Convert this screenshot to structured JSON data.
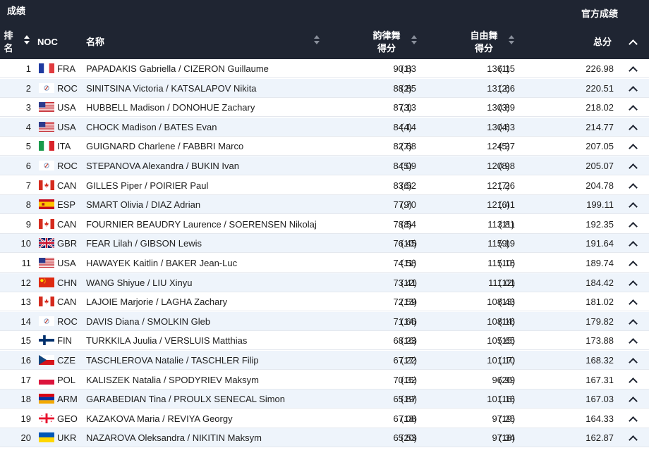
{
  "header": {
    "title": "成绩",
    "official": "官方成绩",
    "rank_label_line1": "排",
    "rank_label_line2": "名",
    "noc": "NOC",
    "name": "名称",
    "rhythm_line1": "韵律舞",
    "rhythm_line2": "得分",
    "free_line1": "自由舞",
    "free_line2": "得分",
    "total": "总分"
  },
  "rows": [
    {
      "rank": "1",
      "noc": "FRA",
      "flag": "fra",
      "name": "PAPADAKIS Gabriella / CIZERON Guillaume",
      "rd": "90.83",
      "rd_place": "(1)",
      "fd": "136.15",
      "fd_place": "(1)",
      "total": "226.98"
    },
    {
      "rank": "2",
      "noc": "ROC",
      "flag": "roc",
      "name": "SINITSINA Victoria / KATSALAPOV Nikita",
      "rd": "88.85",
      "rd_place": "(2)",
      "fd": "131.66",
      "fd_place": "(2)",
      "total": "220.51"
    },
    {
      "rank": "3",
      "noc": "USA",
      "flag": "usa",
      "name": "HUBBELL Madison / DONOHUE Zachary",
      "rd": "87.13",
      "rd_place": "(3)",
      "fd": "130.89",
      "fd_place": "(3)",
      "total": "218.02"
    },
    {
      "rank": "4",
      "noc": "USA",
      "flag": "usa",
      "name": "CHOCK Madison / BATES Evan",
      "rd": "84.14",
      "rd_place": "(4)",
      "fd": "130.63",
      "fd_place": "(4)",
      "total": "214.77"
    },
    {
      "rank": "5",
      "noc": "ITA",
      "flag": "ita",
      "name": "GUIGNARD Charlene / FABBRI Marco",
      "rd": "82.68",
      "rd_place": "(7)",
      "fd": "124.37",
      "fd_place": "(5)",
      "total": "207.05"
    },
    {
      "rank": "6",
      "noc": "ROC",
      "flag": "roc",
      "name": "STEPANOVA Alexandra / BUKIN Ivan",
      "rd": "84.09",
      "rd_place": "(5)",
      "fd": "120.98",
      "fd_place": "(8)",
      "total": "205.07"
    },
    {
      "rank": "7",
      "noc": "CAN",
      "flag": "can",
      "name": "GILLES Piper / POIRIER Paul",
      "rd": "83.52",
      "rd_place": "(6)",
      "fd": "121.26",
      "fd_place": "(7)",
      "total": "204.78"
    },
    {
      "rank": "8",
      "noc": "ESP",
      "flag": "esp",
      "name": "SMART Olivia / DIAZ Adrian",
      "rd": "77.70",
      "rd_place": "(9)",
      "fd": "121.41",
      "fd_place": "(6)",
      "total": "199.11"
    },
    {
      "rank": "9",
      "noc": "CAN",
      "flag": "can",
      "name": "FOURNIER BEAUDRY Laurence / SOERENSEN Nikolaj",
      "rd": "78.54",
      "rd_place": "(8)",
      "fd": "113.81",
      "fd_place": "(11)",
      "total": "192.35"
    },
    {
      "rank": "10",
      "noc": "GBR",
      "flag": "gbr",
      "name": "FEAR Lilah / GIBSON Lewis",
      "rd": "76.45",
      "rd_place": "(10)",
      "fd": "115.19",
      "fd_place": "(9)",
      "total": "191.64"
    },
    {
      "rank": "11",
      "noc": "USA",
      "flag": "usa",
      "name": "HAWAYEK Kaitlin / BAKER Jean-Luc",
      "rd": "74.58",
      "rd_place": "(11)",
      "fd": "115.16",
      "fd_place": "(10)",
      "total": "189.74"
    },
    {
      "rank": "12",
      "noc": "CHN",
      "flag": "chn",
      "name": "WANG Shiyue / LIU Xinyu",
      "rd": "73.41",
      "rd_place": "(12)",
      "fd": "111.01",
      "fd_place": "(12)",
      "total": "184.42"
    },
    {
      "rank": "13",
      "noc": "CAN",
      "flag": "can",
      "name": "LAJOIE Marjorie / LAGHA Zachary",
      "rd": "72.59",
      "rd_place": "(13)",
      "fd": "108.43",
      "fd_place": "(13)",
      "total": "181.02"
    },
    {
      "rank": "14",
      "noc": "ROC",
      "flag": "roc",
      "name": "DAVIS Diana / SMOLKIN Gleb",
      "rd": "71.66",
      "rd_place": "(14)",
      "fd": "108.16",
      "fd_place": "(14)",
      "total": "179.82"
    },
    {
      "rank": "15",
      "noc": "FIN",
      "flag": "fin",
      "name": "TURKKILA Juulia / VERSLUIS Matthias",
      "rd": "68.23",
      "rd_place": "(16)",
      "fd": "105.65",
      "fd_place": "(15)",
      "total": "173.88"
    },
    {
      "rank": "16",
      "noc": "CZE",
      "flag": "cze",
      "name": "TASCHLEROVA Natalie / TASCHLER Filip",
      "rd": "67.22",
      "rd_place": "(17)",
      "fd": "101.10",
      "fd_place": "(17)",
      "total": "168.32"
    },
    {
      "rank": "17",
      "noc": "POL",
      "flag": "pol",
      "name": "KALISZEK Natalia / SPODYRIEV Maksym",
      "rd": "70.32",
      "rd_place": "(15)",
      "fd": "96.99",
      "fd_place": "(20)",
      "total": "167.31"
    },
    {
      "rank": "18",
      "noc": "ARM",
      "flag": "arm",
      "name": "GARABEDIAN Tina / PROULX SENECAL Simon",
      "rd": "65.87",
      "rd_place": "(19)",
      "fd": "101.16",
      "fd_place": "(16)",
      "total": "167.03"
    },
    {
      "rank": "19",
      "noc": "GEO",
      "flag": "geo",
      "name": "KAZAKOVA Maria / REVIYA Georgy",
      "rd": "67.08",
      "rd_place": "(18)",
      "fd": "97.25",
      "fd_place": "(19)",
      "total": "164.33"
    },
    {
      "rank": "20",
      "noc": "UKR",
      "flag": "ukr",
      "name": "NAZAROVA Oleksandra / NIKITIN Maksym",
      "rd": "65.53",
      "rd_place": "(20)",
      "fd": "97.34",
      "fd_place": "(18)",
      "total": "162.87"
    }
  ]
}
